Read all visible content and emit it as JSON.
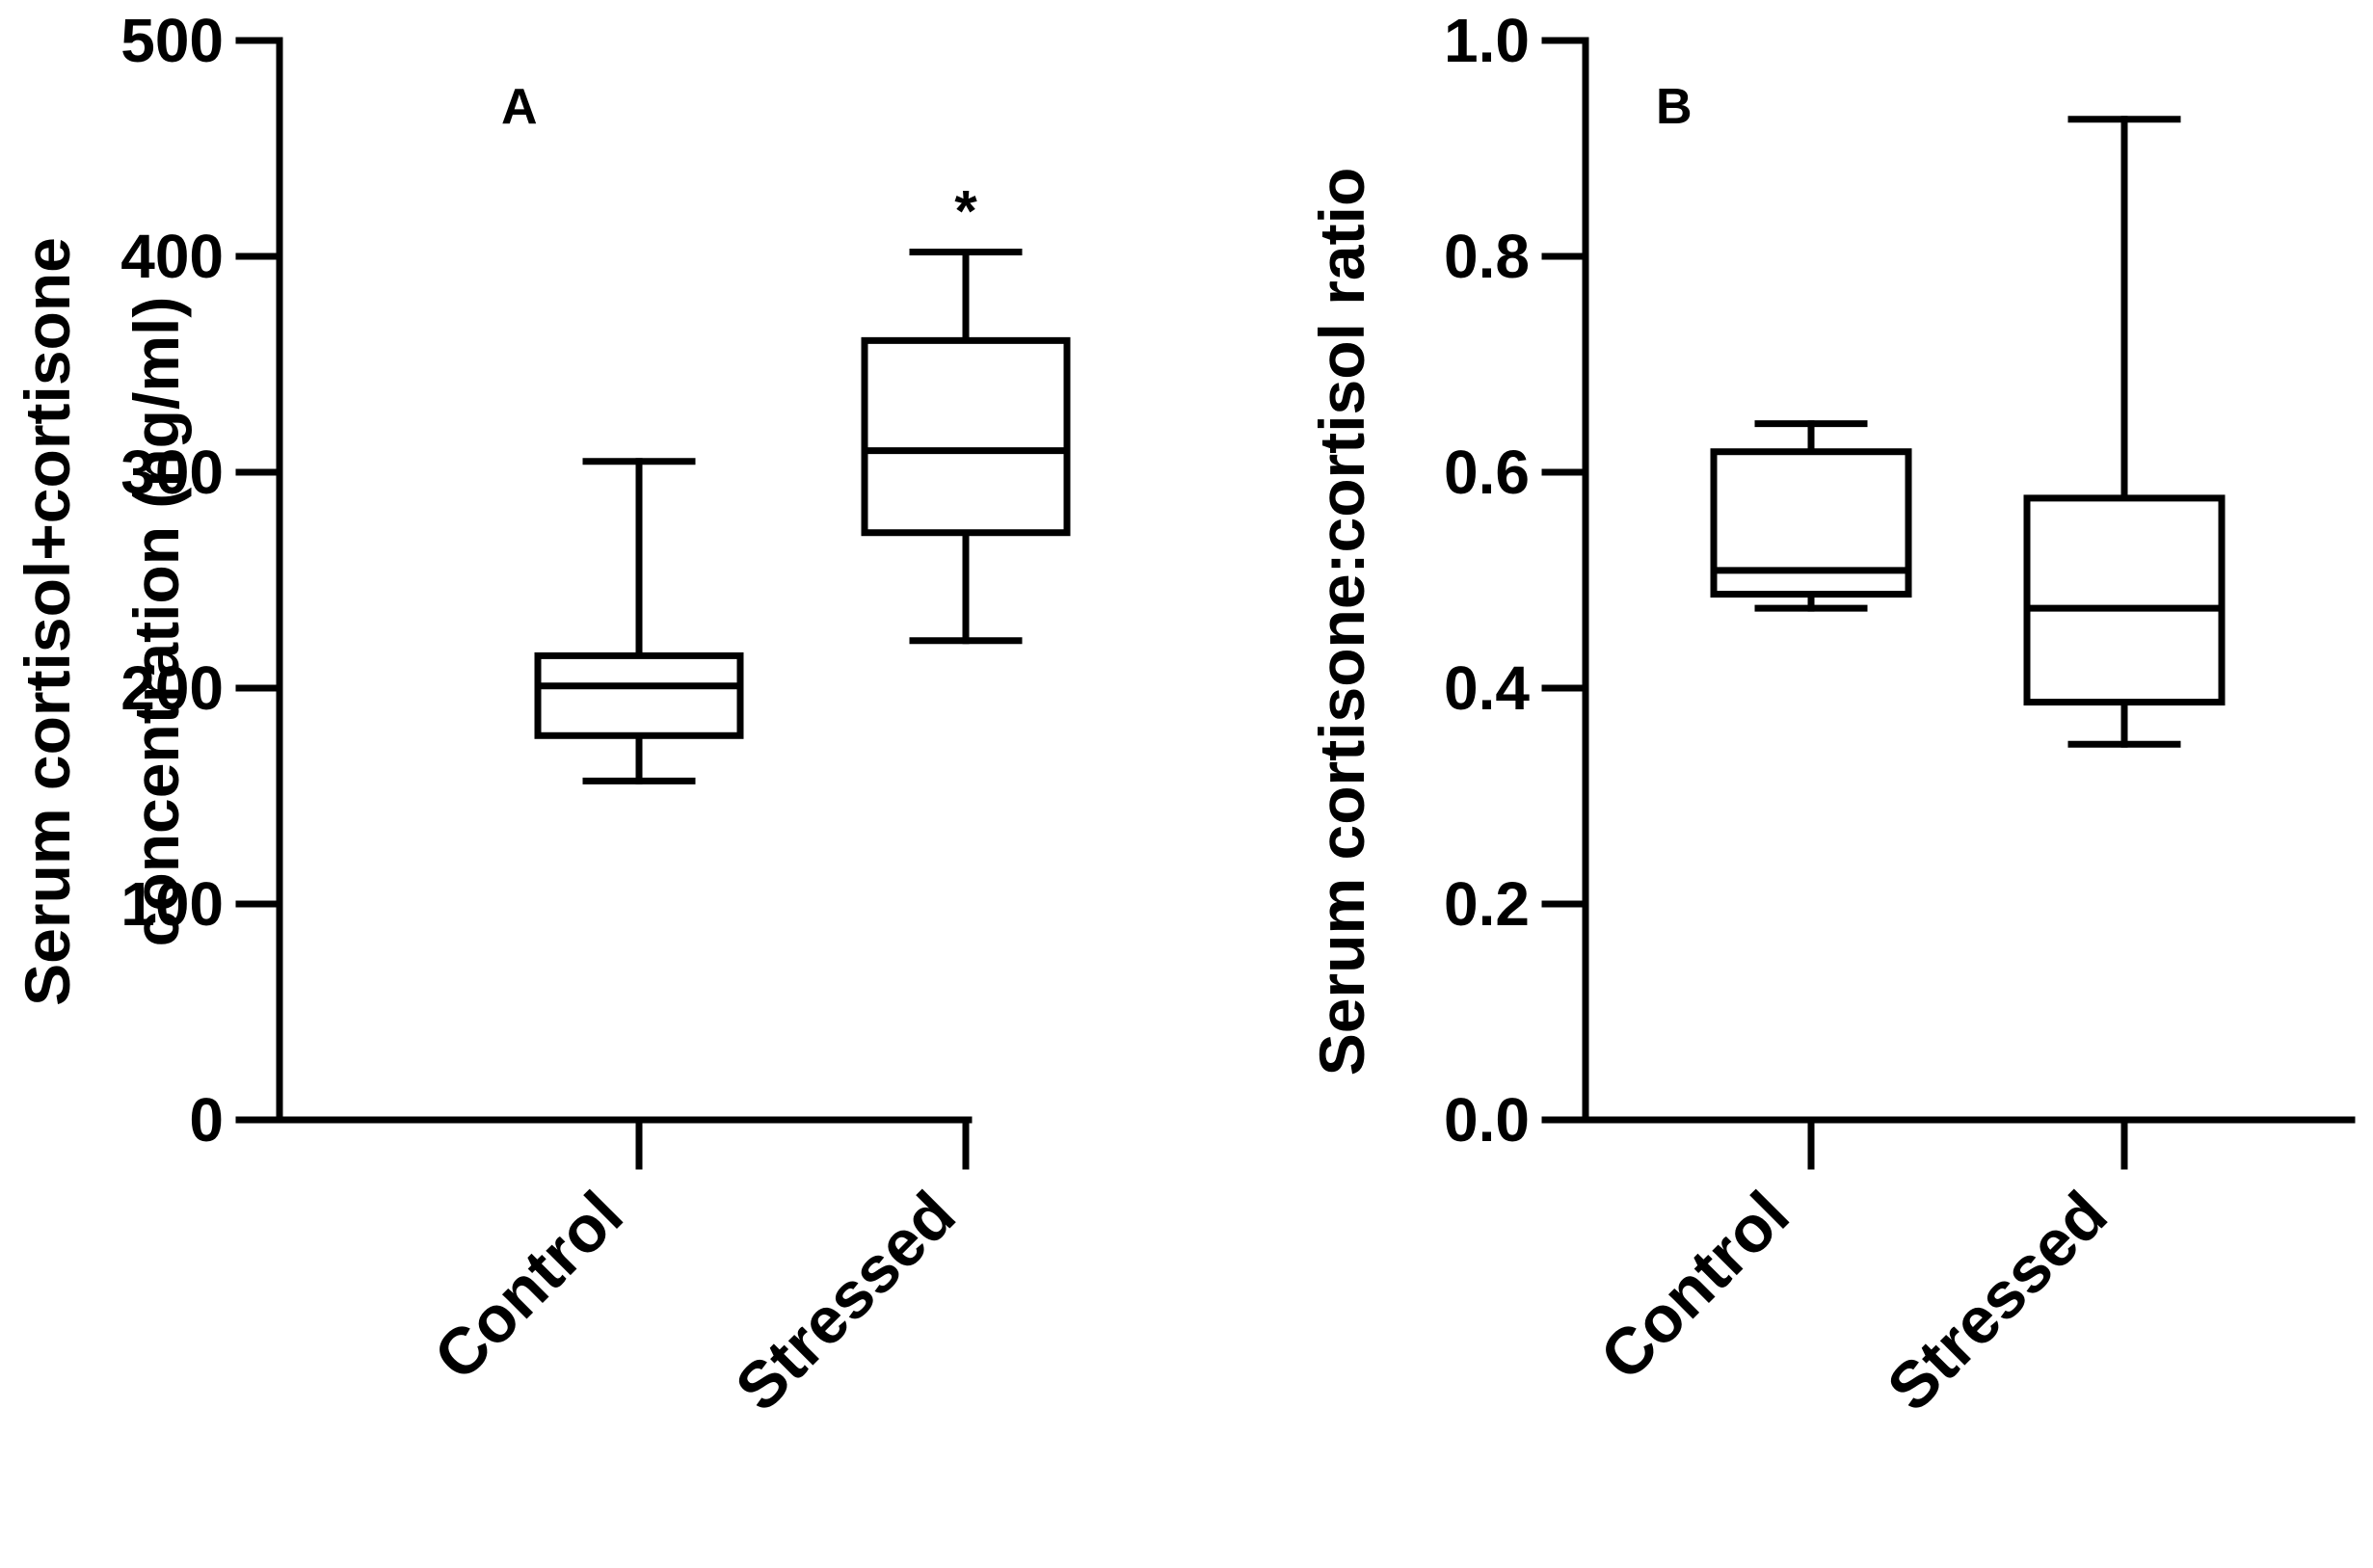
{
  "chart_data": [
    {
      "type": "box",
      "panel_label": "A",
      "ylabel_lines": [
        "Serum cortisol+cortisone",
        "concentration (ng/ml)"
      ],
      "ylim": [
        0,
        500
      ],
      "yticks": [
        0,
        100,
        200,
        300,
        400,
        500
      ],
      "ytick_labels": [
        "0",
        "100",
        "200",
        "300",
        "400",
        "500"
      ],
      "categories": [
        "Control",
        "Stressed"
      ],
      "boxes": [
        {
          "name": "Control",
          "min": 157,
          "q1": 178,
          "median": 201,
          "q3": 215,
          "max": 305,
          "annotation": ""
        },
        {
          "name": "Stressed",
          "min": 222,
          "q1": 272,
          "median": 310,
          "q3": 361,
          "max": 402,
          "annotation": "*"
        }
      ]
    },
    {
      "type": "box",
      "panel_label": "B",
      "ylabel_lines": [
        "Serum cortisone:cortisol ratio"
      ],
      "ylim": [
        0,
        1.0
      ],
      "yticks": [
        0,
        0.2,
        0.4,
        0.6,
        0.8,
        1.0
      ],
      "ytick_labels": [
        "0.0",
        "0.2",
        "0.4",
        "0.6",
        "0.8",
        "1.0"
      ],
      "categories": [
        "Control",
        "Stressed"
      ],
      "boxes": [
        {
          "name": "Control",
          "min": 0.474,
          "q1": 0.487,
          "median": 0.509,
          "q3": 0.619,
          "max": 0.645,
          "annotation": ""
        },
        {
          "name": "Stressed",
          "min": 0.348,
          "q1": 0.387,
          "median": 0.474,
          "q3": 0.576,
          "max": 0.927,
          "annotation": ""
        }
      ]
    }
  ]
}
